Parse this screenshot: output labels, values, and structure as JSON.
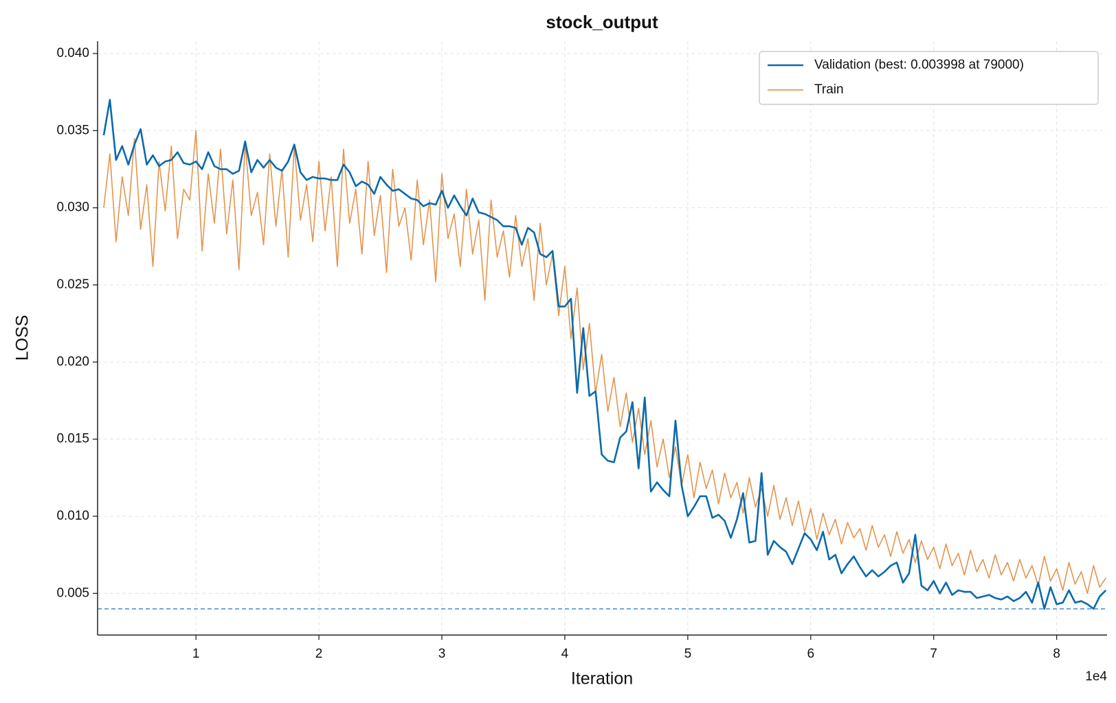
{
  "chart_data": {
    "type": "line",
    "title": "stock_output",
    "x_label": "Iteration",
    "y_label": "LOSS",
    "x_offset_label": "1e4",
    "legend": "upper right",
    "grid": true,
    "xlim": [
      2000,
      84100
    ],
    "ylim": [
      0.0023,
      0.0408
    ],
    "xticks": [
      {
        "value": 10000,
        "label": "1"
      },
      {
        "value": 20000,
        "label": "2"
      },
      {
        "value": 30000,
        "label": "3"
      },
      {
        "value": 40000,
        "label": "4"
      },
      {
        "value": 50000,
        "label": "5"
      },
      {
        "value": 60000,
        "label": "6"
      },
      {
        "value": 70000,
        "label": "7"
      },
      {
        "value": 80000,
        "label": "8"
      }
    ],
    "yticks": [
      0.005,
      {
        "value": 0.01,
        "label": "0.010"
      },
      0.015,
      {
        "value": 0.02,
        "label": "0.020"
      },
      0.025,
      {
        "value": 0.03,
        "label": "0.030"
      },
      0.035,
      {
        "value": 0.04,
        "label": "0.040"
      }
    ],
    "best_line": {
      "value": 0.003998,
      "color": "#3a8fc8"
    },
    "x": [
      2500,
      3000,
      3500,
      4000,
      4500,
      5000,
      5500,
      6000,
      6500,
      7000,
      7500,
      8000,
      8500,
      9000,
      9500,
      10000,
      10500,
      11000,
      11500,
      12000,
      12500,
      13000,
      13500,
      14000,
      14500,
      15000,
      15500,
      16000,
      16500,
      17000,
      17500,
      18000,
      18500,
      19000,
      19500,
      20000,
      20500,
      21000,
      21500,
      22000,
      22500,
      23000,
      23500,
      24000,
      24500,
      25000,
      25500,
      26000,
      26500,
      27000,
      27500,
      28000,
      28500,
      29000,
      29500,
      30000,
      30500,
      31000,
      31500,
      32000,
      32500,
      33000,
      33500,
      34000,
      34500,
      35000,
      35500,
      36000,
      36500,
      37000,
      37500,
      38000,
      38500,
      39000,
      39500,
      40000,
      40500,
      41000,
      41500,
      42000,
      42500,
      43000,
      43500,
      44000,
      44500,
      45000,
      45500,
      46000,
      46500,
      47000,
      47500,
      48000,
      48500,
      49000,
      49500,
      50000,
      50500,
      51000,
      51500,
      52000,
      52500,
      53000,
      53500,
      54000,
      54500,
      55000,
      55500,
      56000,
      56500,
      57000,
      57500,
      58000,
      58500,
      59000,
      59500,
      60000,
      60500,
      61000,
      61500,
      62000,
      62500,
      63000,
      63500,
      64000,
      64500,
      65000,
      65500,
      66000,
      66500,
      67000,
      67500,
      68000,
      68500,
      69000,
      69500,
      70000,
      70500,
      71000,
      71500,
      72000,
      72500,
      73000,
      73500,
      74000,
      74500,
      75000,
      75500,
      76000,
      76500,
      77000,
      77500,
      78000,
      78500,
      79000,
      79500,
      80000,
      80500,
      81000,
      81500,
      82000,
      82500,
      83000,
      83500,
      84000
    ],
    "series": [
      {
        "name": "Train",
        "color": "#e0883a",
        "values": [
          0.03,
          0.0335,
          0.0278,
          0.032,
          0.0295,
          0.0345,
          0.0286,
          0.0315,
          0.0262,
          0.033,
          0.0298,
          0.034,
          0.028,
          0.0312,
          0.0305,
          0.035,
          0.0272,
          0.0322,
          0.029,
          0.0338,
          0.0283,
          0.0318,
          0.026,
          0.0342,
          0.0295,
          0.031,
          0.0276,
          0.0335,
          0.0288,
          0.0325,
          0.0268,
          0.034,
          0.0292,
          0.0315,
          0.0278,
          0.033,
          0.0285,
          0.032,
          0.0262,
          0.0338,
          0.029,
          0.0312,
          0.027,
          0.033,
          0.0282,
          0.0308,
          0.0258,
          0.0325,
          0.0288,
          0.03,
          0.0266,
          0.0318,
          0.0276,
          0.0305,
          0.0252,
          0.0322,
          0.028,
          0.0296,
          0.0262,
          0.0312,
          0.027,
          0.0292,
          0.024,
          0.0305,
          0.0268,
          0.0285,
          0.0255,
          0.0295,
          0.0262,
          0.028,
          0.024,
          0.029,
          0.025,
          0.027,
          0.023,
          0.0262,
          0.0215,
          0.0248,
          0.0195,
          0.0225,
          0.018,
          0.0205,
          0.0168,
          0.019,
          0.0158,
          0.018,
          0.0148,
          0.017,
          0.014,
          0.0162,
          0.0132,
          0.015,
          0.0125,
          0.0145,
          0.012,
          0.014,
          0.0112,
          0.0135,
          0.0118,
          0.013,
          0.0108,
          0.0128,
          0.0112,
          0.0122,
          0.0102,
          0.0125,
          0.0106,
          0.0118,
          0.01,
          0.012,
          0.0098,
          0.0112,
          0.0094,
          0.011,
          0.009,
          0.0105,
          0.0085,
          0.0102,
          0.0088,
          0.0098,
          0.0082,
          0.0096,
          0.0086,
          0.0092,
          0.0078,
          0.0094,
          0.008,
          0.0088,
          0.0074,
          0.009,
          0.0076,
          0.0085,
          0.007,
          0.0084,
          0.0072,
          0.008,
          0.0066,
          0.0082,
          0.0068,
          0.0076,
          0.0062,
          0.0078,
          0.0064,
          0.0072,
          0.006,
          0.0075,
          0.0062,
          0.007,
          0.0058,
          0.0072,
          0.006,
          0.0068,
          0.0055,
          0.0074,
          0.0058,
          0.0066,
          0.0052,
          0.007,
          0.0056,
          0.0064,
          0.005,
          0.0068,
          0.0054,
          0.006
        ]
      },
      {
        "name": "Validation (best: 0.003998 at 79000)",
        "color": "#0a6aab",
        "values": [
          0.0347,
          0.037,
          0.0331,
          0.034,
          0.0328,
          0.0341,
          0.0351,
          0.0328,
          0.0334,
          0.0327,
          0.033,
          0.0331,
          0.0336,
          0.0329,
          0.0328,
          0.033,
          0.0325,
          0.0336,
          0.0327,
          0.0325,
          0.0325,
          0.0322,
          0.0324,
          0.0343,
          0.0323,
          0.0331,
          0.0326,
          0.0331,
          0.0326,
          0.0324,
          0.033,
          0.0341,
          0.0323,
          0.0318,
          0.032,
          0.0319,
          0.0319,
          0.0318,
          0.0318,
          0.0328,
          0.0323,
          0.0314,
          0.0317,
          0.0315,
          0.0309,
          0.032,
          0.0315,
          0.0311,
          0.0312,
          0.0309,
          0.0306,
          0.0305,
          0.0301,
          0.0303,
          0.0302,
          0.0311,
          0.03,
          0.0308,
          0.0301,
          0.0295,
          0.0306,
          0.0297,
          0.0296,
          0.0294,
          0.0292,
          0.0288,
          0.0288,
          0.0287,
          0.0276,
          0.0287,
          0.0284,
          0.027,
          0.0268,
          0.0272,
          0.0236,
          0.0236,
          0.0241,
          0.018,
          0.0222,
          0.0178,
          0.0181,
          0.014,
          0.0136,
          0.0135,
          0.0151,
          0.0155,
          0.0174,
          0.0131,
          0.0177,
          0.0116,
          0.0122,
          0.0117,
          0.0113,
          0.0162,
          0.012,
          0.01,
          0.0106,
          0.0113,
          0.0113,
          0.0099,
          0.0101,
          0.0097,
          0.0086,
          0.0098,
          0.0115,
          0.0083,
          0.0084,
          0.0128,
          0.0075,
          0.0084,
          0.008,
          0.0077,
          0.0069,
          0.0079,
          0.0089,
          0.0085,
          0.0078,
          0.009,
          0.0072,
          0.0075,
          0.0063,
          0.0069,
          0.0074,
          0.0067,
          0.0061,
          0.0065,
          0.0061,
          0.0064,
          0.0068,
          0.007,
          0.0057,
          0.0063,
          0.0088,
          0.0055,
          0.0052,
          0.0058,
          0.005,
          0.0057,
          0.0049,
          0.0052,
          0.0051,
          0.0051,
          0.0047,
          0.0048,
          0.0049,
          0.0047,
          0.0046,
          0.0048,
          0.0045,
          0.0047,
          0.0051,
          0.0044,
          0.0057,
          0.004,
          0.0054,
          0.0043,
          0.0044,
          0.0052,
          0.0044,
          0.0045,
          0.0043,
          0.004,
          0.0048,
          0.0052
        ]
      }
    ]
  }
}
